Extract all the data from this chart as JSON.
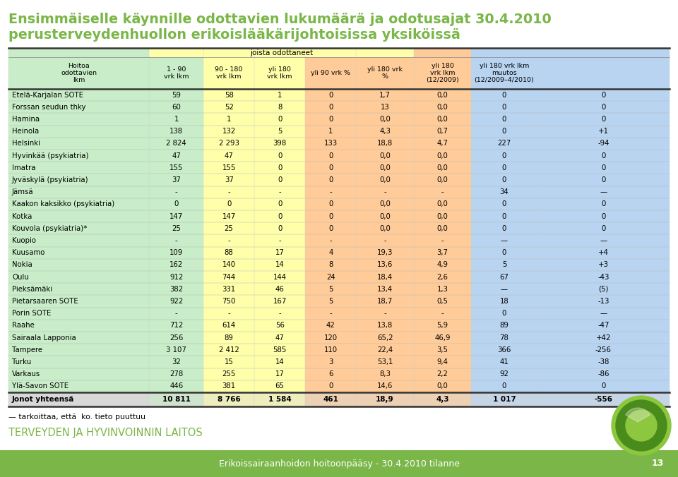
{
  "title_line1": "Ensimmäiselle käynnille odottavien lukumäärä ja odotusajat 30.4.2010",
  "title_line2": "perusterveydenhuollon erikoislääkärijohtoisissa yksiköissä",
  "title_color": "#7ab648",
  "header_group": "joista odottaneet",
  "header_labels": [
    "Hoitoa\nodottavien\nlkm",
    "1 - 90\nvrk lkm",
    "90 - 180\nvrk lkm",
    "yli 180\nvrk lkm",
    "yli 90 vrk %",
    "yli 180 vrk\n%",
    "yli 180\nvrk lkm\n(12/2009)",
    "yli 180 vrk lkm\nmuutos\n(12/2009–4/2010)"
  ],
  "rows": [
    [
      "Etelä-Karjalan SOTE",
      "59",
      "58",
      "1",
      "0",
      "1,7",
      "0,0",
      "0",
      "0"
    ],
    [
      "Forssan seudun thky",
      "60",
      "52",
      "8",
      "0",
      "13",
      "0,0",
      "0",
      "0"
    ],
    [
      "Hamina",
      "1",
      "1",
      "0",
      "0",
      "0,0",
      "0,0",
      "0",
      "0"
    ],
    [
      "Heinola",
      "138",
      "132",
      "5",
      "1",
      "4,3",
      "0,7",
      "0",
      "+1"
    ],
    [
      "Helsinki",
      "2 824",
      "2 293",
      "398",
      "133",
      "18,8",
      "4,7",
      "227",
      "-94"
    ],
    [
      "Hyvinkää (psykiatria)",
      "47",
      "47",
      "0",
      "0",
      "0,0",
      "0,0",
      "0",
      "0"
    ],
    [
      "Imatra",
      "155",
      "155",
      "0",
      "0",
      "0,0",
      "0,0",
      "0",
      "0"
    ],
    [
      "Jyväskylä (psykiatria)",
      "37",
      "37",
      "0",
      "0",
      "0,0",
      "0,0",
      "0",
      "0"
    ],
    [
      "Jämsä",
      "-",
      "-",
      "-",
      "-",
      "-",
      "-",
      "34",
      "—"
    ],
    [
      "Kaakon kaksikko (psykiatria)",
      "0",
      "0",
      "0",
      "0",
      "0,0",
      "0,0",
      "0",
      "0"
    ],
    [
      "Kotka",
      "147",
      "147",
      "0",
      "0",
      "0,0",
      "0,0",
      "0",
      "0"
    ],
    [
      "Kouvola (psykiatria)*",
      "25",
      "25",
      "0",
      "0",
      "0,0",
      "0,0",
      "0",
      "0"
    ],
    [
      "Kuopio",
      "-",
      "-",
      "-",
      "-",
      "-",
      "-",
      "—",
      "—"
    ],
    [
      "Kuusamo",
      "109",
      "88",
      "17",
      "4",
      "19,3",
      "3,7",
      "0",
      "+4"
    ],
    [
      "Nokia",
      "162",
      "140",
      "14",
      "8",
      "13,6",
      "4,9",
      "5",
      "+3"
    ],
    [
      "Oulu",
      "912",
      "744",
      "144",
      "24",
      "18,4",
      "2,6",
      "67",
      "-43"
    ],
    [
      "Pieksämäki",
      "382",
      "331",
      "46",
      "5",
      "13,4",
      "1,3",
      "—",
      "(5)"
    ],
    [
      "Pietarsaaren SOTE",
      "922",
      "750",
      "167",
      "5",
      "18,7",
      "0,5",
      "18",
      "-13"
    ],
    [
      "Porin SOTE",
      "-",
      "-",
      "-",
      "-",
      "-",
      "-",
      "0",
      "—"
    ],
    [
      "Raahe",
      "712",
      "614",
      "56",
      "42",
      "13,8",
      "5,9",
      "89",
      "-47"
    ],
    [
      "Sairaala Lapponia",
      "256",
      "89",
      "47",
      "120",
      "65,2",
      "46,9",
      "78",
      "+42"
    ],
    [
      "Tampere",
      "3 107",
      "2 412",
      "585",
      "110",
      "22,4",
      "3,5",
      "366",
      "-256"
    ],
    [
      "Turku",
      "32",
      "15",
      "14",
      "3",
      "53,1",
      "9,4",
      "41",
      "-38"
    ],
    [
      "Varkaus",
      "278",
      "255",
      "17",
      "6",
      "8,3",
      "2,2",
      "92",
      "-86"
    ],
    [
      "Ylä-Savon SOTE",
      "446",
      "381",
      "65",
      "0",
      "14,6",
      "0,0",
      "0",
      "0"
    ]
  ],
  "total_row": [
    "Jonot yhteensä",
    "10 811",
    "8 766",
    "1 584",
    "461",
    "18,9",
    "4,3",
    "1 017",
    "-556"
  ],
  "footnote": "— tarkoittaa, että  ko. tieto puuttuu",
  "footer_institute": "TERVEYDEN JA HYVINVOINNIN LAITOS",
  "footer_text": "Erikoissairaanhoidon hoitoonpääsy - 30.4.2010 tilanne",
  "footer_page": "13",
  "col_bg_colors": [
    "#c8edc8",
    "#ffffaa",
    "#ffffaa",
    "#ffcc99",
    "#ffcc99",
    "#ffcc99",
    "#b8d4f0",
    "#b8d4f0"
  ],
  "footer_bg": "#7ab648",
  "col_props": [
    0.213,
    0.082,
    0.077,
    0.077,
    0.077,
    0.087,
    0.087,
    0.1,
    0.1
  ]
}
